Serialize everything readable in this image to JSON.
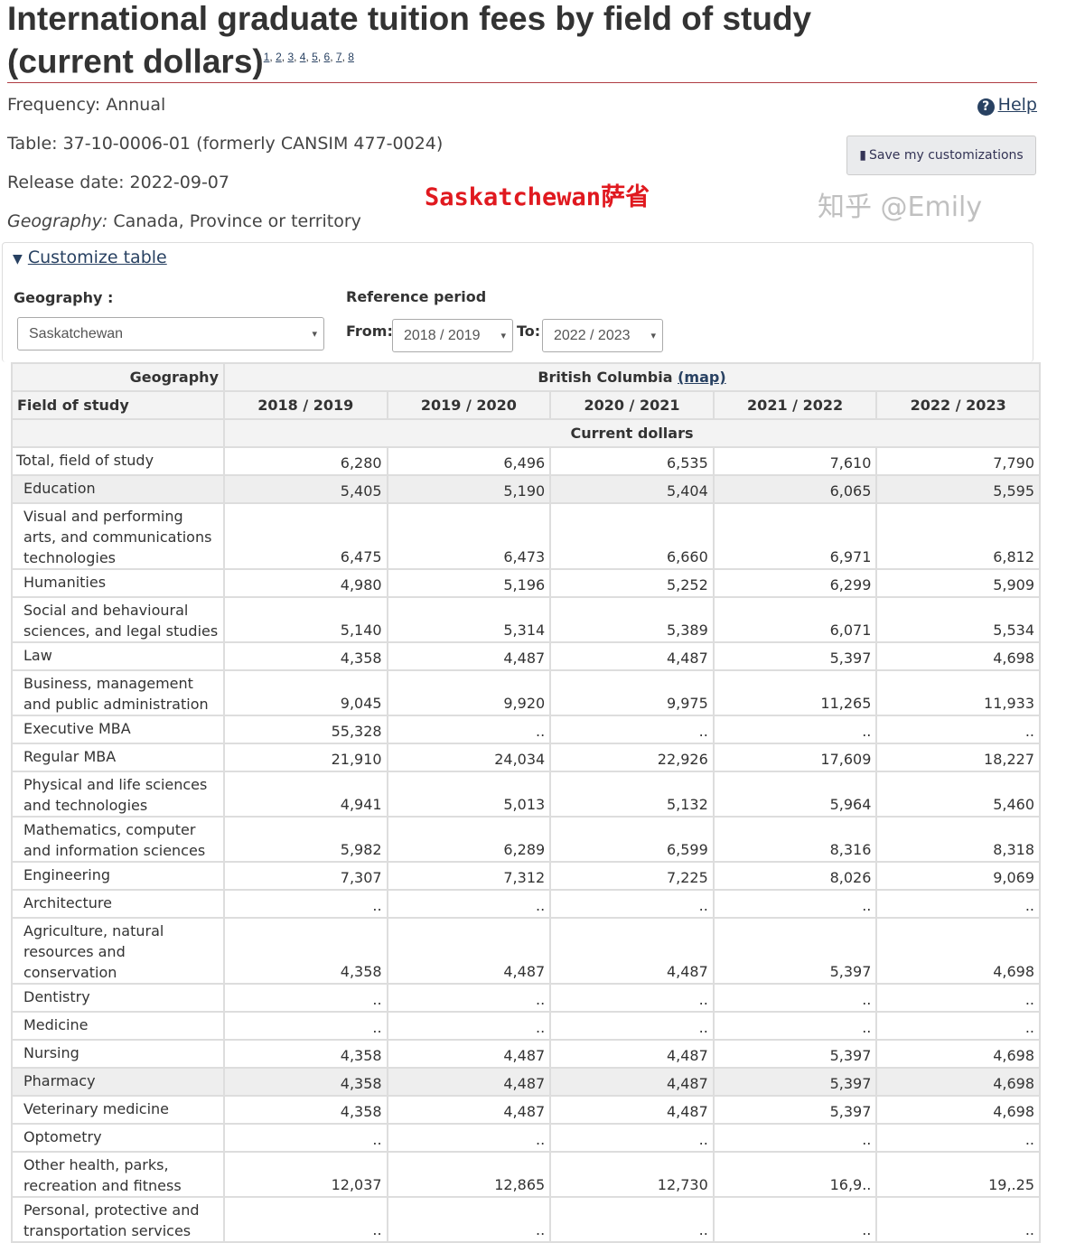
{
  "title": "International graduate tuition fees by field of study (current dollars)",
  "footnotes": [
    "1",
    "2",
    "3",
    "4",
    "5",
    "6",
    "7",
    "8"
  ],
  "frequency": "Frequency: Annual",
  "table_id": "Table: 37-10-0006-01 (formerly CANSIM 477-0024)",
  "release": "Release date: 2022-09-07",
  "geo_label": "Geography:",
  "geo_value": " Canada, Province or territory",
  "help": "Help",
  "save": "Save my customizations",
  "annotation": "Saskatchewan萨省",
  "customize": "Customize table",
  "geography_label": "Geography :",
  "geography_value": "Saskatchewan",
  "ref_period": "Reference period",
  "from_label": "From:",
  "from_value": "2018 / 2019",
  "to_label": "To:",
  "to_value": "2022 / 2023",
  "table": {
    "geo_header": "Geography",
    "geo_name": "British Columbia",
    "map_link": "(map)",
    "field_header": "Field of study",
    "years": [
      "2018 / 2019",
      "2019 / 2020",
      "2020 / 2021",
      "2021 / 2022",
      "2022 / 2023"
    ],
    "unit": "Current dollars",
    "rows": [
      {
        "label": "Total, field of study",
        "values": [
          "6,280",
          "6,496",
          "6,535",
          "7,610",
          "7,790"
        ]
      },
      {
        "label": "Education",
        "values": [
          "5,405",
          "5,190",
          "5,404",
          "6,065",
          "5,595"
        ]
      },
      {
        "label": "Visual and performing arts, and communications technologies",
        "values": [
          "6,475",
          "6,473",
          "6,660",
          "6,971",
          "6,812"
        ]
      },
      {
        "label": "Humanities",
        "values": [
          "4,980",
          "5,196",
          "5,252",
          "6,299",
          "5,909"
        ]
      },
      {
        "label": "Social and behavioural sciences, and legal studies",
        "values": [
          "5,140",
          "5,314",
          "5,389",
          "6,071",
          "5,534"
        ]
      },
      {
        "label": "Law",
        "values": [
          "4,358",
          "4,487",
          "4,487",
          "5,397",
          "4,698"
        ]
      },
      {
        "label": "Business, management and public administration",
        "values": [
          "9,045",
          "9,920",
          "9,975",
          "11,265",
          "11,933"
        ]
      },
      {
        "label": "Executive MBA",
        "values": [
          "55,328",
          "..",
          "..",
          "..",
          ".."
        ]
      },
      {
        "label": "Regular MBA",
        "values": [
          "21,910",
          "24,034",
          "22,926",
          "17,609",
          "18,227"
        ]
      },
      {
        "label": "Physical and life sciences and technologies",
        "values": [
          "4,941",
          "5,013",
          "5,132",
          "5,964",
          "5,460"
        ]
      },
      {
        "label": "Mathematics, computer and information sciences",
        "values": [
          "5,982",
          "6,289",
          "6,599",
          "8,316",
          "8,318"
        ]
      },
      {
        "label": "Engineering",
        "values": [
          "7,307",
          "7,312",
          "7,225",
          "8,026",
          "9,069"
        ]
      },
      {
        "label": "Architecture",
        "values": [
          "..",
          "..",
          "..",
          "..",
          ".."
        ]
      },
      {
        "label": "Agriculture, natural resources and conservation",
        "values": [
          "4,358",
          "4,487",
          "4,487",
          "5,397",
          "4,698"
        ]
      },
      {
        "label": "Dentistry",
        "values": [
          "..",
          "..",
          "..",
          "..",
          ".."
        ]
      },
      {
        "label": "Medicine",
        "values": [
          "..",
          "..",
          "..",
          "..",
          ".."
        ]
      },
      {
        "label": "Nursing",
        "values": [
          "4,358",
          "4,487",
          "4,487",
          "5,397",
          "4,698"
        ]
      },
      {
        "label": "Pharmacy",
        "values": [
          "4,358",
          "4,487",
          "4,487",
          "5,397",
          "4,698"
        ]
      },
      {
        "label": "Veterinary medicine",
        "values": [
          "4,358",
          "4,487",
          "4,487",
          "5,397",
          "4,698"
        ]
      },
      {
        "label": "Optometry",
        "values": [
          "..",
          "..",
          "..",
          "..",
          ".."
        ]
      },
      {
        "label": "Other health, parks, recreation and fitness",
        "values": [
          "12,037",
          "12,865",
          "12,730",
          "16,9..",
          "19,.25"
        ]
      },
      {
        "label": "Personal, protective and transportation services",
        "values": [
          "..",
          "..",
          "..",
          "..",
          ".."
        ]
      }
    ]
  },
  "watermark": "知乎 @Emily"
}
